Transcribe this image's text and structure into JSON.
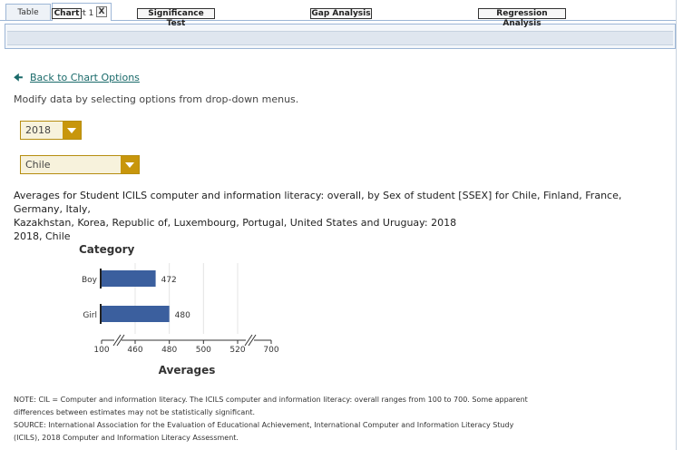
{
  "tabs": [
    {
      "label": "Table"
    },
    {
      "label": "Chart 1",
      "close": "X"
    }
  ],
  "nav": {
    "buttons": [
      "Chart",
      "Significance Test",
      "Gap Analysis",
      "Regression Analysis"
    ]
  },
  "back_link": "Back to Chart Options",
  "instruction": "Modify data by selecting options from drop-down menus.",
  "dropdowns": {
    "year": "2018",
    "country": "Chile"
  },
  "caption": {
    "line1": "Averages for Student ICILS computer and information literacy: overall, by Sex of student [SSEX] for Chile, Finland, France, Germany, Italy,",
    "line2": "Kazakhstan, Korea, Republic of, Luxembourg, Portugal, United States and Uruguay: 2018",
    "line3": "2018, Chile"
  },
  "chart_data": {
    "type": "bar",
    "orientation": "horizontal",
    "y_title": "Category",
    "xlabel": "Averages",
    "categories": [
      "Boy",
      "Girl"
    ],
    "values": [
      472,
      480
    ],
    "xticks": [
      "100",
      "460",
      "480",
      "500",
      "520",
      "700"
    ],
    "axis_breaks": true,
    "grid": true,
    "bar_color": "#3b5f9e"
  },
  "notes": {
    "line1": "NOTE: CIL = Computer and information literacy. The ICILS computer and information literacy: overall ranges from 100 to 700. Some apparent",
    "line2": "differences between estimates may not be statistically significant.",
    "line3": "SOURCE: International Association for the Evaluation of Educational Achievement, International Computer and Information Literacy Study",
    "line4": "(ICILS), 2018 Computer and Information Literacy Assessment."
  }
}
